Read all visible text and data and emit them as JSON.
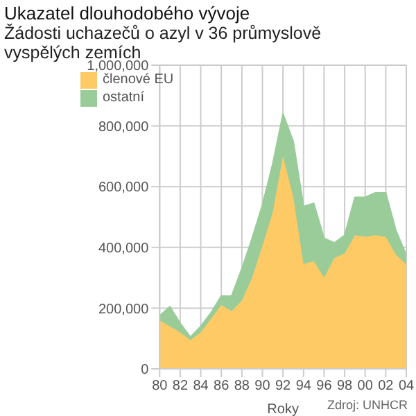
{
  "chart_data": {
    "type": "area",
    "title": "Ukazatel dlouhodobého vývoje",
    "subtitle": "Žádosti uchazečů o azyl v 36 průmyslově vyspělých zemích",
    "xlabel": "Roky",
    "annotations": [
      "Zdroj: UNHCR"
    ],
    "x": [
      1980,
      1981,
      1982,
      1983,
      1984,
      1985,
      1986,
      1987,
      1988,
      1989,
      1990,
      1991,
      1992,
      1993,
      1994,
      1995,
      1996,
      1997,
      1998,
      1999,
      2000,
      2001,
      2002,
      2003,
      2004
    ],
    "series": [
      {
        "name": "členové EU",
        "color": "#fdca66",
        "values": [
          160000,
          140000,
          120000,
          95000,
          120000,
          165000,
          210000,
          190000,
          225000,
          300000,
          405000,
          515000,
          700000,
          565000,
          345000,
          355000,
          300000,
          365000,
          380000,
          440000,
          435000,
          440000,
          435000,
          375000,
          345000
        ]
      },
      {
        "name": "ostatní",
        "color": "#99cc99",
        "values": [
          15000,
          65000,
          30000,
          10000,
          20000,
          20000,
          30000,
          50000,
          105000,
          130000,
          135000,
          160000,
          140000,
          185000,
          190000,
          190000,
          130000,
          50000,
          60000,
          125000,
          130000,
          140000,
          145000,
          80000,
          30000
        ]
      }
    ],
    "stacked": true,
    "xlim": [
      1980,
      2004
    ],
    "xticks": [
      {
        "value": 1980,
        "label": "80"
      },
      {
        "value": 1982,
        "label": "82"
      },
      {
        "value": 1984,
        "label": "84"
      },
      {
        "value": 1986,
        "label": "86"
      },
      {
        "value": 1988,
        "label": "88"
      },
      {
        "value": 1990,
        "label": "90"
      },
      {
        "value": 1992,
        "label": "92"
      },
      {
        "value": 1994,
        "label": "94"
      },
      {
        "value": 1996,
        "label": "96"
      },
      {
        "value": 1998,
        "label": "98"
      },
      {
        "value": 2000,
        "label": "00"
      },
      {
        "value": 2002,
        "label": "02"
      },
      {
        "value": 2004,
        "label": "04"
      }
    ],
    "ylim": [
      0,
      1000000
    ],
    "yticks": [
      {
        "value": 0,
        "label": "0"
      },
      {
        "value": 200000,
        "label": "200,000"
      },
      {
        "value": 400000,
        "label": "400,000"
      },
      {
        "value": 600000,
        "label": "600,000"
      },
      {
        "value": 800000,
        "label": "800,000"
      },
      {
        "value": 1000000,
        "label": "1,000,000"
      }
    ],
    "grid": true,
    "legend": "top left"
  }
}
